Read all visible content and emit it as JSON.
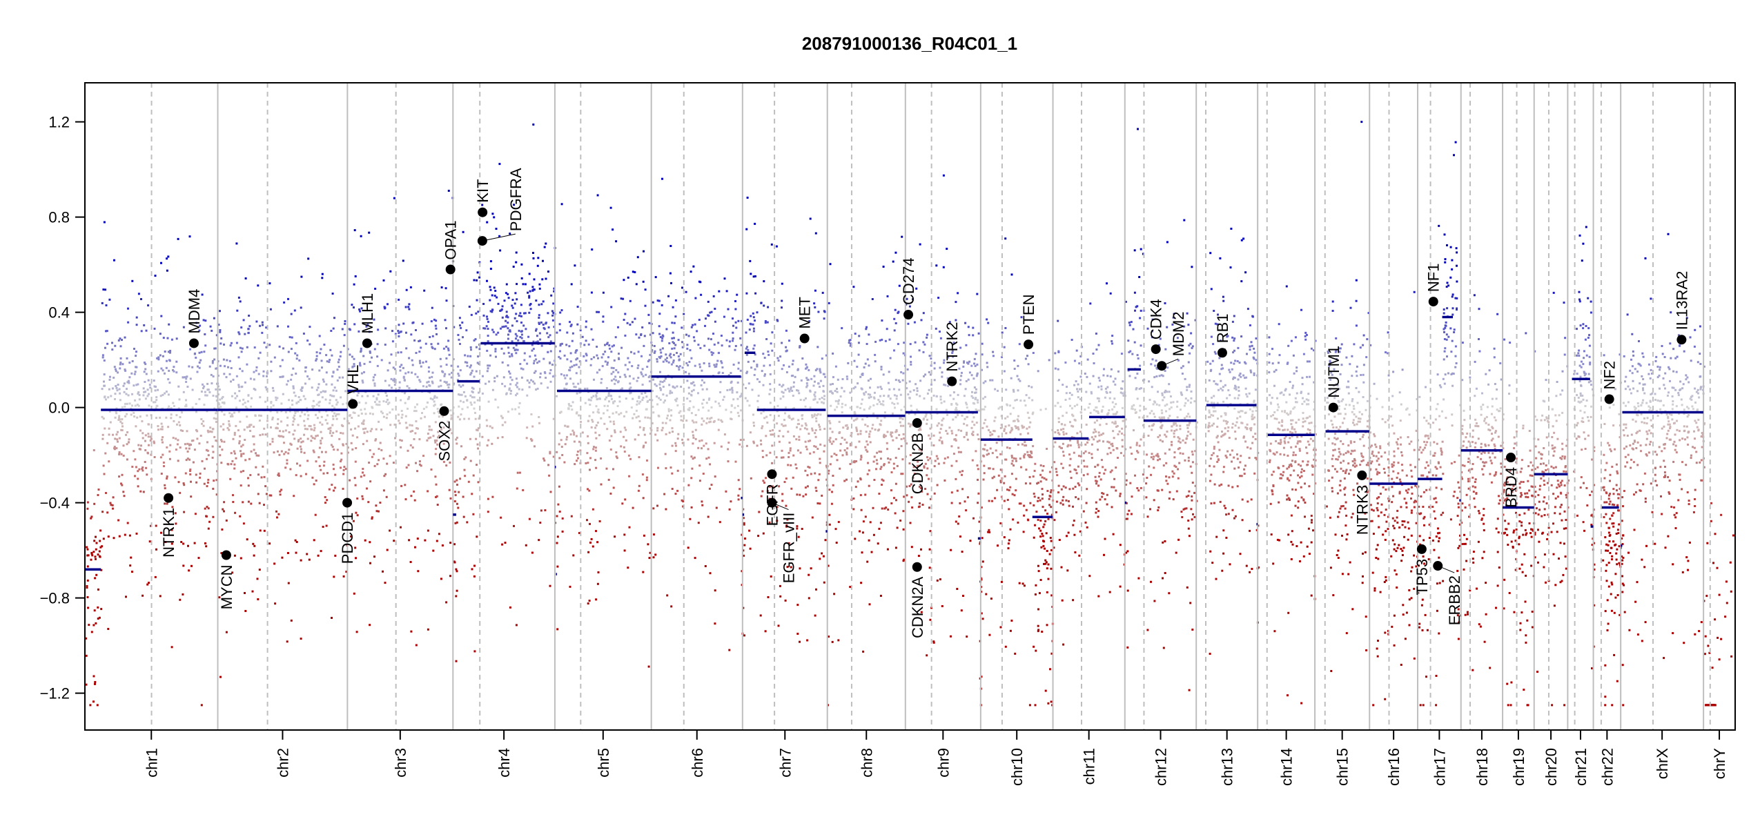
{
  "chart_data": {
    "type": "scatter",
    "title": "208791000136_R04C01_1",
    "xlabel": "",
    "ylabel": "",
    "ylim": [
      -1.35,
      1.35
    ],
    "yticks": [
      {
        "value": 1.2,
        "label": "1.2"
      },
      {
        "value": 0.8,
        "label": "0.8"
      },
      {
        "value": 0.4,
        "label": "0.4"
      },
      {
        "value": 0.0,
        "label": "0.0"
      },
      {
        "value": -0.4,
        "label": "−0.4"
      },
      {
        "value": -0.8,
        "label": "−0.8"
      },
      {
        "value": -1.2,
        "label": "−1.2"
      }
    ],
    "grid": false,
    "colors": {
      "gain": "#0000b4",
      "neutral": "#d3d3d3",
      "loss": "#a00000",
      "segment": "#00008b",
      "boundary": "#bebebe",
      "gene_point": "#000000"
    },
    "chromosomes": [
      {
        "name": "chr1",
        "length_mb": 249.25,
        "centromere_mb": 125.0
      },
      {
        "name": "chr2",
        "length_mb": 243.2,
        "centromere_mb": 93.3
      },
      {
        "name": "chr3",
        "length_mb": 198.0,
        "centromere_mb": 91.0
      },
      {
        "name": "chr4",
        "length_mb": 191.15,
        "centromere_mb": 50.4
      },
      {
        "name": "chr5",
        "length_mb": 180.9,
        "centromere_mb": 48.4
      },
      {
        "name": "chr6",
        "length_mb": 171.1,
        "centromere_mb": 61.0
      },
      {
        "name": "chr7",
        "length_mb": 159.1,
        "centromere_mb": 59.9
      },
      {
        "name": "chr8",
        "length_mb": 146.4,
        "centromere_mb": 45.6
      },
      {
        "name": "chr9",
        "length_mb": 141.2,
        "centromere_mb": 49.0
      },
      {
        "name": "chr10",
        "length_mb": 135.5,
        "centromere_mb": 40.2
      },
      {
        "name": "chr11",
        "length_mb": 135.0,
        "centromere_mb": 53.7
      },
      {
        "name": "chr12",
        "length_mb": 133.85,
        "centromere_mb": 35.8
      },
      {
        "name": "chr13",
        "length_mb": 115.2,
        "centromere_mb": 17.9
      },
      {
        "name": "chr14",
        "length_mb": 107.35,
        "centromere_mb": 17.6
      },
      {
        "name": "chr15",
        "length_mb": 102.5,
        "centromere_mb": 19.0
      },
      {
        "name": "chr16",
        "length_mb": 90.35,
        "centromere_mb": 36.6
      },
      {
        "name": "chr17",
        "length_mb": 81.2,
        "centromere_mb": 24.0
      },
      {
        "name": "chr18",
        "length_mb": 78.1,
        "centromere_mb": 17.2
      },
      {
        "name": "chr19",
        "length_mb": 59.1,
        "centromere_mb": 26.5
      },
      {
        "name": "chr20",
        "length_mb": 63.0,
        "centromere_mb": 27.5
      },
      {
        "name": "chr21",
        "length_mb": 48.1,
        "centromere_mb": 13.2
      },
      {
        "name": "chr22",
        "length_mb": 51.3,
        "centromere_mb": 14.7
      },
      {
        "name": "chrX",
        "length_mb": 155.3,
        "centromere_mb": 60.6
      },
      {
        "name": "chrY",
        "length_mb": 59.4,
        "centromere_mb": 12.5
      }
    ],
    "segments": [
      {
        "chr": "chr1",
        "start": 0,
        "end": 30,
        "value": -0.68
      },
      {
        "chr": "chr1",
        "start": 30,
        "end": 249,
        "value": -0.01
      },
      {
        "chr": "chr2",
        "start": 0,
        "end": 243,
        "value": -0.01
      },
      {
        "chr": "chr3",
        "start": 0,
        "end": 198,
        "value": 0.07
      },
      {
        "chr": "chr4",
        "start": 0,
        "end": 6,
        "value": -0.45
      },
      {
        "chr": "chr4",
        "start": 8,
        "end": 50,
        "value": 0.11
      },
      {
        "chr": "chr4",
        "start": 52,
        "end": 191,
        "value": 0.27
      },
      {
        "chr": "chr5",
        "start": 0,
        "end": 2,
        "value": -0.25
      },
      {
        "chr": "chr5",
        "start": 2,
        "end": 4,
        "value": -0.7
      },
      {
        "chr": "chr5",
        "start": 4,
        "end": 181,
        "value": 0.07
      },
      {
        "chr": "chr6",
        "start": 0,
        "end": 168,
        "value": 0.13
      },
      {
        "chr": "chr6",
        "start": 168,
        "end": 171,
        "value": -0.38
      },
      {
        "chr": "chr7",
        "start": 0,
        "end": 3,
        "value": -0.45
      },
      {
        "chr": "chr7",
        "start": 4,
        "end": 24,
        "value": 0.23
      },
      {
        "chr": "chr7",
        "start": 27,
        "end": 156,
        "value": -0.01
      },
      {
        "chr": "chr7",
        "start": 156,
        "end": 159,
        "value": -0.52
      },
      {
        "chr": "chr8",
        "start": 0,
        "end": 146,
        "value": -0.035
      },
      {
        "chr": "chr9",
        "start": 0,
        "end": 136,
        "value": -0.02
      },
      {
        "chr": "chr9",
        "start": 136,
        "end": 141,
        "value": -0.55
      },
      {
        "chr": "chr10",
        "start": 0,
        "end": 97,
        "value": -0.135
      },
      {
        "chr": "chr10",
        "start": 97,
        "end": 135,
        "value": -0.46
      },
      {
        "chr": "chr11",
        "start": 0,
        "end": 67,
        "value": -0.13
      },
      {
        "chr": "chr11",
        "start": 68,
        "end": 135,
        "value": -0.04
      },
      {
        "chr": "chr12",
        "start": 0,
        "end": 3,
        "value": -0.4
      },
      {
        "chr": "chr12",
        "start": 5,
        "end": 30,
        "value": 0.16
      },
      {
        "chr": "chr12",
        "start": 35,
        "end": 134,
        "value": -0.055
      },
      {
        "chr": "chr13",
        "start": 19,
        "end": 113,
        "value": 0.01
      },
      {
        "chr": "chr13",
        "start": 113,
        "end": 115,
        "value": -0.49
      },
      {
        "chr": "chr14",
        "start": 19,
        "end": 107,
        "value": -0.115
      },
      {
        "chr": "chr15",
        "start": 20,
        "end": 102,
        "value": -0.1
      },
      {
        "chr": "chr16",
        "start": 0,
        "end": 90,
        "value": -0.32
      },
      {
        "chr": "chr17",
        "start": 0,
        "end": 46,
        "value": -0.3
      },
      {
        "chr": "chr17",
        "start": 46,
        "end": 66,
        "value": 0.38
      },
      {
        "chr": "chr17",
        "start": 78,
        "end": 81,
        "value": -0.39
      },
      {
        "chr": "chr18",
        "start": 0,
        "end": 78,
        "value": -0.18
      },
      {
        "chr": "chr19",
        "start": 0,
        "end": 59,
        "value": -0.42
      },
      {
        "chr": "chr20",
        "start": 0,
        "end": 63,
        "value": -0.28
      },
      {
        "chr": "chr21",
        "start": 8,
        "end": 42,
        "value": 0.12
      },
      {
        "chr": "chr21",
        "start": 43,
        "end": 48,
        "value": -0.5
      },
      {
        "chr": "chr22",
        "start": 16,
        "end": 48,
        "value": -0.42
      },
      {
        "chr": "chrX",
        "start": 0,
        "end": 3,
        "value": -0.58
      },
      {
        "chr": "chrX",
        "start": 3,
        "end": 155,
        "value": -0.02
      }
    ],
    "genes": [
      {
        "name": "NTRK1",
        "chr": "chr1",
        "pos_mb": 156.8,
        "value": -0.38
      },
      {
        "name": "MDM4",
        "chr": "chr1",
        "pos_mb": 204.5,
        "value": 0.27
      },
      {
        "name": "MYCN",
        "chr": "chr2",
        "pos_mb": 16.0,
        "value": -0.62
      },
      {
        "name": "PDCD1",
        "chr": "chr2",
        "pos_mb": 242.8,
        "value": -0.4
      },
      {
        "name": "VHL",
        "chr": "chr3",
        "pos_mb": 10.2,
        "value": 0.015
      },
      {
        "name": "MLH1",
        "chr": "chr3",
        "pos_mb": 37.0,
        "value": 0.27
      },
      {
        "name": "SOX2",
        "chr": "chr3",
        "pos_mb": 181.4,
        "value": -0.015
      },
      {
        "name": "OPA1",
        "chr": "chr3",
        "pos_mb": 193.3,
        "value": 0.58
      },
      {
        "name": "KIT",
        "chr": "chr4",
        "pos_mb": 55.5,
        "value": 0.82
      },
      {
        "name": "PDGFRA",
        "chr": "chr4",
        "pos_mb": 55.1,
        "value": 0.7
      },
      {
        "name": "EGFR",
        "chr": "chr7",
        "pos_mb": 55.2,
        "value": -0.28
      },
      {
        "name": "EGFR_vIII",
        "chr": "chr7",
        "pos_mb": 55.2,
        "value": -0.4
      },
      {
        "name": "MET",
        "chr": "chr7",
        "pos_mb": 116.3,
        "value": 0.29
      },
      {
        "name": "CD274",
        "chr": "chr9",
        "pos_mb": 5.5,
        "value": 0.39
      },
      {
        "name": "CDKN2B",
        "chr": "chr9",
        "pos_mb": 22.0,
        "value": -0.065
      },
      {
        "name": "CDKN2A",
        "chr": "chr9",
        "pos_mb": 21.97,
        "value": -0.67
      },
      {
        "name": "NTRK2",
        "chr": "chr9",
        "pos_mb": 87.3,
        "value": 0.11
      },
      {
        "name": "PTEN",
        "chr": "chr10",
        "pos_mb": 89.6,
        "value": 0.265
      },
      {
        "name": "CDK4",
        "chr": "chr12",
        "pos_mb": 58.1,
        "value": 0.245
      },
      {
        "name": "MDM2",
        "chr": "chr12",
        "pos_mb": 69.2,
        "value": 0.175
      },
      {
        "name": "RB1",
        "chr": "chr13",
        "pos_mb": 48.9,
        "value": 0.23
      },
      {
        "name": "NUTM1",
        "chr": "chr15",
        "pos_mb": 34.6,
        "value": 0.0
      },
      {
        "name": "NTRK3",
        "chr": "chr15",
        "pos_mb": 88.4,
        "value": -0.285
      },
      {
        "name": "NF1",
        "chr": "chr17",
        "pos_mb": 29.4,
        "value": 0.445
      },
      {
        "name": "TP53",
        "chr": "chr17",
        "pos_mb": 7.57,
        "value": -0.595
      },
      {
        "name": "ERBB2",
        "chr": "chr17",
        "pos_mb": 37.8,
        "value": -0.665
      },
      {
        "name": "BRD4",
        "chr": "chr19",
        "pos_mb": 15.4,
        "value": -0.21
      },
      {
        "name": "NF2",
        "chr": "chr22",
        "pos_mb": 29.9,
        "value": 0.035
      },
      {
        "name": "IL13RA2",
        "chr": "chrX",
        "pos_mb": 114.2,
        "value": 0.285
      }
    ]
  }
}
